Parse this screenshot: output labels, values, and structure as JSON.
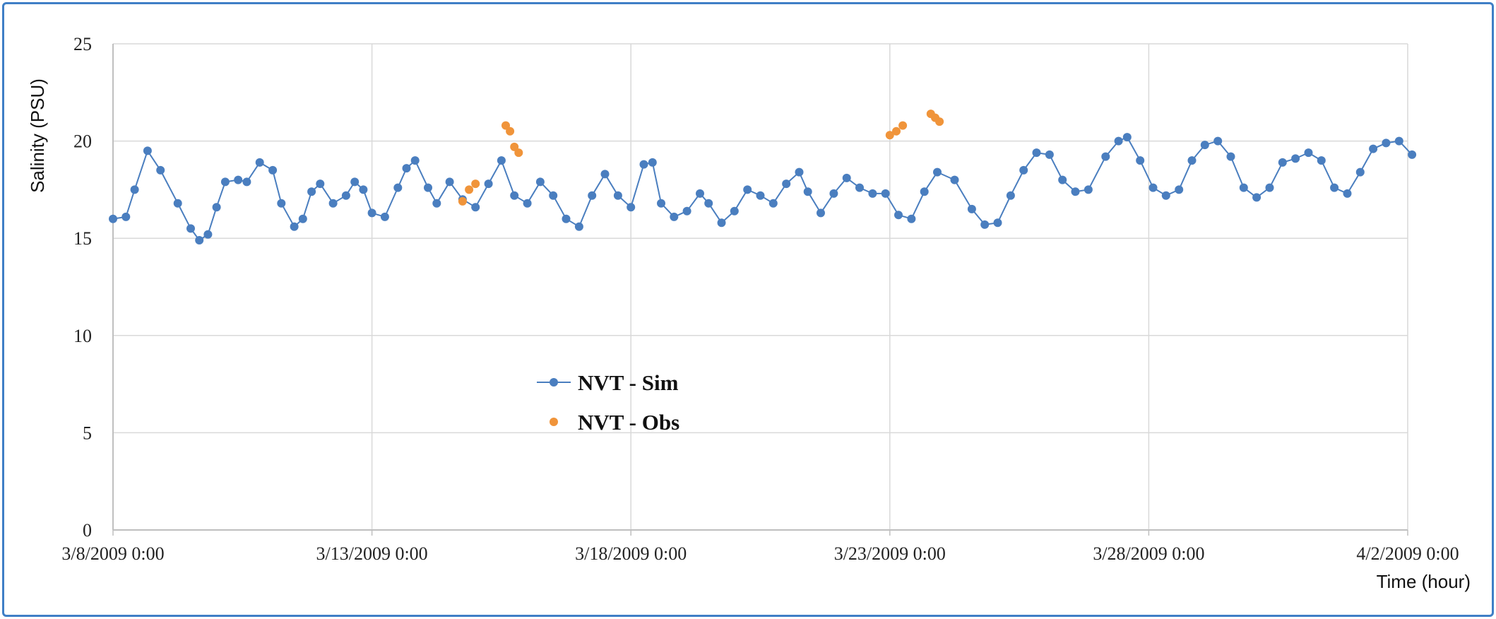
{
  "colors": {
    "sim": "#4a7ebf",
    "obs": "#f0943a",
    "grid": "#d9d9d9",
    "axis": "#bfbfbf",
    "frame": "#3f7fc6"
  },
  "chart_data": {
    "type": "line",
    "title": "",
    "xlabel": "Time (hour)",
    "ylabel": "Salinity (PSU)",
    "x_axis_type": "date",
    "xlim": [
      "2009-03-08 00:00",
      "2009-04-02 00:00"
    ],
    "ylim": [
      0,
      25
    ],
    "y_ticks": [
      0,
      5,
      10,
      15,
      20,
      25
    ],
    "x_ticks": [
      "2009-03-08 00:00",
      "2009-03-13 00:00",
      "2009-03-18 00:00",
      "2009-03-23 00:00",
      "2009-03-28 00:00",
      "2009-04-02 00:00"
    ],
    "x_tick_labels": [
      "3/8/2009 0:00",
      "3/13/2009 0:00",
      "3/18/2009 0:00",
      "3/23/2009 0:00",
      "3/28/2009 0:00",
      "4/2/2009 0:00"
    ],
    "grid": true,
    "legend": {
      "position": "center-left",
      "entries": [
        "NVT - Sim",
        "NVT - Obs"
      ]
    },
    "series": [
      {
        "name": "NVT - Sim",
        "style": "line-marker",
        "color": "#4a7ebf",
        "points": [
          [
            "2009-03-08 00:00",
            16.0
          ],
          [
            "2009-03-08 06:00",
            16.1
          ],
          [
            "2009-03-08 10:00",
            17.5
          ],
          [
            "2009-03-08 16:00",
            19.5
          ],
          [
            "2009-03-08 22:00",
            18.5
          ],
          [
            "2009-03-09 06:00",
            16.8
          ],
          [
            "2009-03-09 12:00",
            15.5
          ],
          [
            "2009-03-09 16:00",
            14.9
          ],
          [
            "2009-03-09 20:00",
            15.2
          ],
          [
            "2009-03-10 00:00",
            16.6
          ],
          [
            "2009-03-10 04:00",
            17.9
          ],
          [
            "2009-03-10 10:00",
            18.0
          ],
          [
            "2009-03-10 14:00",
            17.9
          ],
          [
            "2009-03-10 20:00",
            18.9
          ],
          [
            "2009-03-11 02:00",
            18.5
          ],
          [
            "2009-03-11 06:00",
            16.8
          ],
          [
            "2009-03-11 12:00",
            15.6
          ],
          [
            "2009-03-11 16:00",
            16.0
          ],
          [
            "2009-03-11 20:00",
            17.4
          ],
          [
            "2009-03-12 00:00",
            17.8
          ],
          [
            "2009-03-12 06:00",
            16.8
          ],
          [
            "2009-03-12 12:00",
            17.2
          ],
          [
            "2009-03-12 16:00",
            17.9
          ],
          [
            "2009-03-12 20:00",
            17.5
          ],
          [
            "2009-03-13 00:00",
            16.3
          ],
          [
            "2009-03-13 06:00",
            16.1
          ],
          [
            "2009-03-13 12:00",
            17.6
          ],
          [
            "2009-03-13 16:00",
            18.6
          ],
          [
            "2009-03-13 20:00",
            19.0
          ],
          [
            "2009-03-14 02:00",
            17.6
          ],
          [
            "2009-03-14 06:00",
            16.8
          ],
          [
            "2009-03-14 12:00",
            17.9
          ],
          [
            "2009-03-14 18:00",
            17.0
          ],
          [
            "2009-03-15 00:00",
            16.6
          ],
          [
            "2009-03-15 06:00",
            17.8
          ],
          [
            "2009-03-15 12:00",
            19.0
          ],
          [
            "2009-03-15 18:00",
            17.2
          ],
          [
            "2009-03-16 00:00",
            16.8
          ],
          [
            "2009-03-16 06:00",
            17.9
          ],
          [
            "2009-03-16 12:00",
            17.2
          ],
          [
            "2009-03-16 18:00",
            16.0
          ],
          [
            "2009-03-17 00:00",
            15.6
          ],
          [
            "2009-03-17 06:00",
            17.2
          ],
          [
            "2009-03-17 12:00",
            18.3
          ],
          [
            "2009-03-17 18:00",
            17.2
          ],
          [
            "2009-03-18 00:00",
            16.6
          ],
          [
            "2009-03-18 06:00",
            18.8
          ],
          [
            "2009-03-18 10:00",
            18.9
          ],
          [
            "2009-03-18 14:00",
            16.8
          ],
          [
            "2009-03-18 20:00",
            16.1
          ],
          [
            "2009-03-19 02:00",
            16.4
          ],
          [
            "2009-03-19 08:00",
            17.3
          ],
          [
            "2009-03-19 12:00",
            16.8
          ],
          [
            "2009-03-19 18:00",
            15.8
          ],
          [
            "2009-03-20 00:00",
            16.4
          ],
          [
            "2009-03-20 06:00",
            17.5
          ],
          [
            "2009-03-20 12:00",
            17.2
          ],
          [
            "2009-03-20 18:00",
            16.8
          ],
          [
            "2009-03-21 00:00",
            17.8
          ],
          [
            "2009-03-21 06:00",
            18.4
          ],
          [
            "2009-03-21 10:00",
            17.4
          ],
          [
            "2009-03-21 16:00",
            16.3
          ],
          [
            "2009-03-21 22:00",
            17.3
          ],
          [
            "2009-03-22 04:00",
            18.1
          ],
          [
            "2009-03-22 10:00",
            17.6
          ],
          [
            "2009-03-22 16:00",
            17.3
          ],
          [
            "2009-03-22 22:00",
            17.3
          ],
          [
            "2009-03-23 04:00",
            16.2
          ],
          [
            "2009-03-23 10:00",
            16.0
          ],
          [
            "2009-03-23 16:00",
            17.4
          ],
          [
            "2009-03-23 22:00",
            18.4
          ],
          [
            "2009-03-24 06:00",
            18.0
          ],
          [
            "2009-03-24 14:00",
            16.5
          ],
          [
            "2009-03-24 20:00",
            15.7
          ],
          [
            "2009-03-25 02:00",
            15.8
          ],
          [
            "2009-03-25 08:00",
            17.2
          ],
          [
            "2009-03-25 14:00",
            18.5
          ],
          [
            "2009-03-25 20:00",
            19.4
          ],
          [
            "2009-03-26 02:00",
            19.3
          ],
          [
            "2009-03-26 08:00",
            18.0
          ],
          [
            "2009-03-26 14:00",
            17.4
          ],
          [
            "2009-03-26 20:00",
            17.5
          ],
          [
            "2009-03-27 04:00",
            19.2
          ],
          [
            "2009-03-27 10:00",
            20.0
          ],
          [
            "2009-03-27 14:00",
            20.2
          ],
          [
            "2009-03-27 20:00",
            19.0
          ],
          [
            "2009-03-28 02:00",
            17.6
          ],
          [
            "2009-03-28 08:00",
            17.2
          ],
          [
            "2009-03-28 14:00",
            17.5
          ],
          [
            "2009-03-28 20:00",
            19.0
          ],
          [
            "2009-03-29 02:00",
            19.8
          ],
          [
            "2009-03-29 08:00",
            20.0
          ],
          [
            "2009-03-29 14:00",
            19.2
          ],
          [
            "2009-03-29 20:00",
            17.6
          ],
          [
            "2009-03-30 02:00",
            17.1
          ],
          [
            "2009-03-30 08:00",
            17.6
          ],
          [
            "2009-03-30 14:00",
            18.9
          ],
          [
            "2009-03-30 20:00",
            19.1
          ],
          [
            "2009-03-31 02:00",
            19.4
          ],
          [
            "2009-03-31 08:00",
            19.0
          ],
          [
            "2009-03-31 14:00",
            17.6
          ],
          [
            "2009-03-31 20:00",
            17.3
          ],
          [
            "2009-04-01 02:00",
            18.4
          ],
          [
            "2009-04-01 08:00",
            19.6
          ],
          [
            "2009-04-01 14:00",
            19.9
          ],
          [
            "2009-04-01 20:00",
            20.0
          ],
          [
            "2009-04-02 02:00",
            19.3
          ]
        ]
      },
      {
        "name": "NVT - Obs",
        "style": "marker",
        "color": "#f0943a",
        "points": [
          [
            "2009-03-14 18:00",
            16.9
          ],
          [
            "2009-03-14 21:00",
            17.5
          ],
          [
            "2009-03-15 00:00",
            17.8
          ],
          [
            "2009-03-15 14:00",
            20.8
          ],
          [
            "2009-03-15 16:00",
            20.5
          ],
          [
            "2009-03-15 18:00",
            19.7
          ],
          [
            "2009-03-15 20:00",
            19.4
          ],
          [
            "2009-03-23 00:00",
            20.3
          ],
          [
            "2009-03-23 03:00",
            20.5
          ],
          [
            "2009-03-23 06:00",
            20.8
          ],
          [
            "2009-03-23 19:00",
            21.4
          ],
          [
            "2009-03-23 21:00",
            21.2
          ],
          [
            "2009-03-23 23:00",
            21.0
          ]
        ]
      }
    ]
  }
}
